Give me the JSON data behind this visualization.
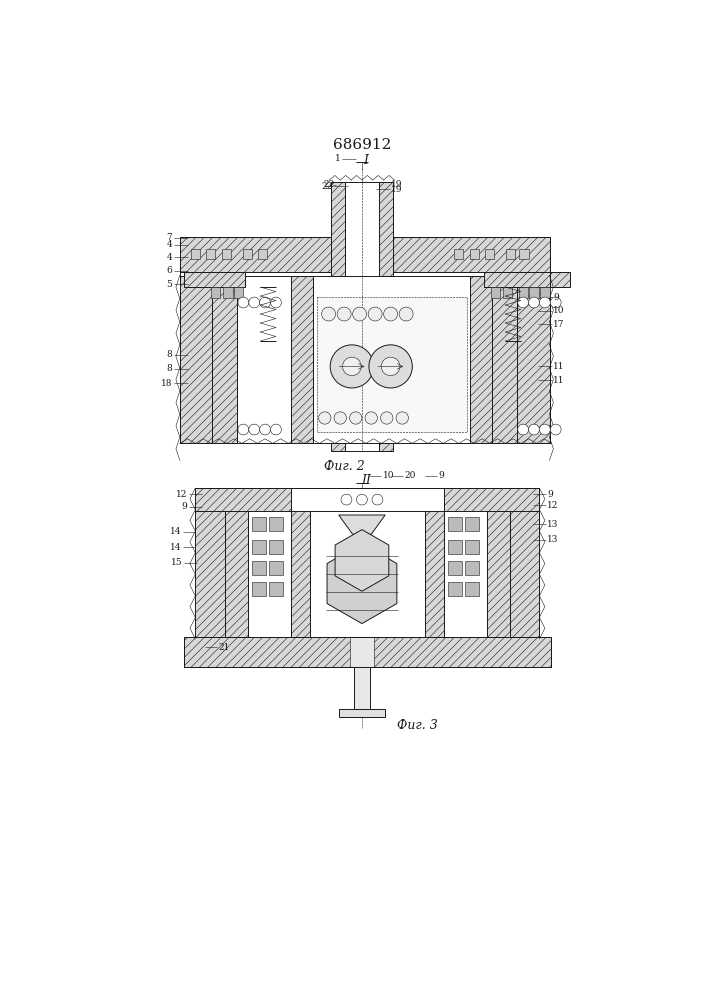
{
  "title": "686912",
  "fig2_caption": "Фиг. 2",
  "fig3_caption": "Фиг. 3",
  "fig_width": 7.07,
  "fig_height": 10.0,
  "bg_color": "#ffffff",
  "line_color": "#1a1a1a",
  "hatch_fc": "#d8d8d8",
  "white": "#ffffff",
  "light_fc": "#f0f0f0"
}
